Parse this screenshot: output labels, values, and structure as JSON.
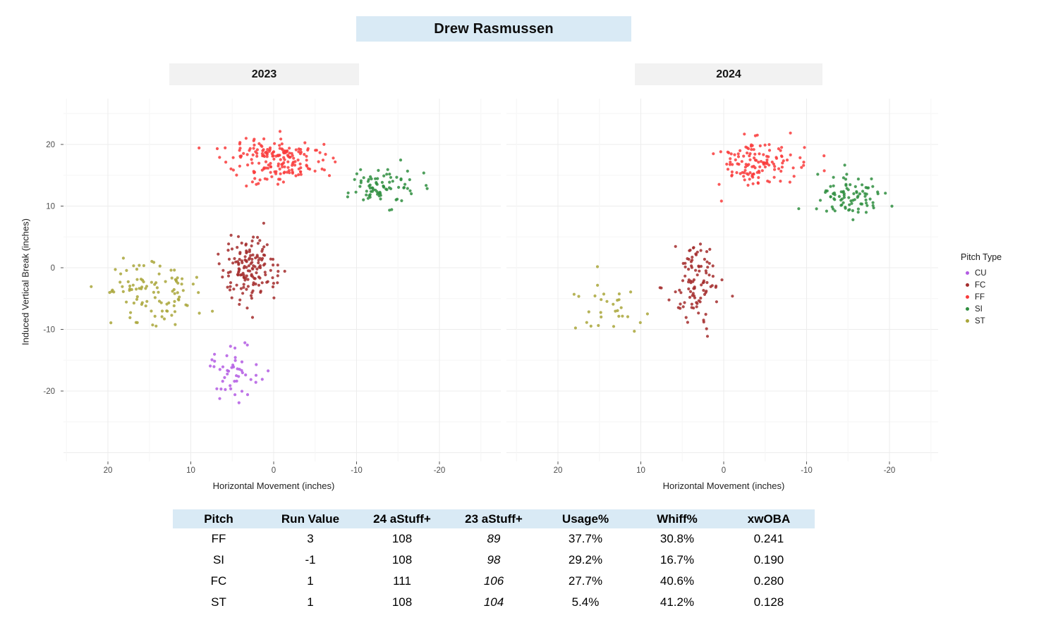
{
  "page": {
    "title": "Drew Rasmussen"
  },
  "facets": [
    {
      "label": "2023"
    },
    {
      "label": "2024"
    }
  ],
  "axes": {
    "x_label": "Horizontal Movement (inches)",
    "y_label": "Induced Vertical Break (inches)"
  },
  "legend": {
    "title": "Pitch Type",
    "items": [
      {
        "pitch": "CU"
      },
      {
        "pitch": "FC"
      },
      {
        "pitch": "FF"
      },
      {
        "pitch": "SI"
      },
      {
        "pitch": "ST"
      }
    ]
  },
  "colors": {
    "CU": "#b35be3",
    "FC": "#a32c2c",
    "FF": "#f93b3b",
    "SI": "#2f8e3f",
    "ST": "#a9a63a",
    "title_band": "#d9eaf5",
    "strip_band": "#f2f2f2",
    "grid_major": "#ececec",
    "grid_minor": "#f6f6f6",
    "tick_text": "#4d4d4d",
    "tick_mark": "#555555"
  },
  "chart_data": {
    "type": "scatter",
    "title": "Drew Rasmussen",
    "xlabel": "Horizontal Movement (inches)",
    "ylabel": "Induced Vertical Break (inches)",
    "x_ticks": [
      20,
      10,
      0,
      -10,
      -20
    ],
    "y_ticks": [
      20,
      10,
      0,
      -10,
      -20
    ],
    "x_axis_reversed": true,
    "x_range": [
      25,
      -27
    ],
    "y_range": [
      27,
      -31
    ],
    "grid": true,
    "legend_position": "right",
    "point_alpha": 0.85,
    "panels": [
      {
        "label": "2023",
        "clusters": [
          {
            "pitch": "ST",
            "n": 100,
            "mean_x": 14.8,
            "mean_y": -4.3,
            "sd_x": 3.1,
            "sd_y": 2.7
          },
          {
            "pitch": "FC",
            "n": 150,
            "mean_x": 3.1,
            "mean_y": -0.4,
            "sd_x": 1.8,
            "sd_y": 2.7
          },
          {
            "pitch": "FF",
            "n": 185,
            "mean_x": -0.3,
            "mean_y": 17.4,
            "sd_x": 2.9,
            "sd_y": 1.8
          },
          {
            "pitch": "SI",
            "n": 80,
            "mean_x": -13.4,
            "mean_y": 13.2,
            "sd_x": 2.1,
            "sd_y": 1.6
          },
          {
            "pitch": "CU",
            "n": 48,
            "mean_x": 4.7,
            "mean_y": -17.3,
            "sd_x": 1.6,
            "sd_y": 2.2
          }
        ]
      },
      {
        "label": "2024",
        "clusters": [
          {
            "pitch": "ST",
            "n": 30,
            "mean_x": 13.5,
            "mean_y": -5.8,
            "sd_x": 2.9,
            "sd_y": 2.6
          },
          {
            "pitch": "FC",
            "n": 100,
            "mean_x": 3.4,
            "mean_y": -2.6,
            "sd_x": 1.5,
            "sd_y": 3.3
          },
          {
            "pitch": "FF",
            "n": 130,
            "mean_x": -4.2,
            "mean_y": 17.0,
            "sd_x": 2.4,
            "sd_y": 1.7
          },
          {
            "pitch": "SI",
            "n": 88,
            "mean_x": -15.2,
            "mean_y": 11.7,
            "sd_x": 2.0,
            "sd_y": 1.8
          }
        ]
      }
    ]
  },
  "table": {
    "columns": [
      "Pitch",
      "Run Value",
      "24 aStuff+",
      "23 aStuff+",
      "Usage%",
      "Whiff%",
      "xwOBA"
    ],
    "italic_col_index": 3,
    "rows": [
      [
        "FF",
        "3",
        "108",
        "89",
        "37.7%",
        "30.8%",
        "0.241"
      ],
      [
        "SI",
        "-1",
        "108",
        "98",
        "29.2%",
        "16.7%",
        "0.190"
      ],
      [
        "FC",
        "1",
        "111",
        "106",
        "27.7%",
        "40.6%",
        "0.280"
      ],
      [
        "ST",
        "1",
        "108",
        "104",
        "5.4%",
        "41.2%",
        "0.128"
      ]
    ]
  }
}
